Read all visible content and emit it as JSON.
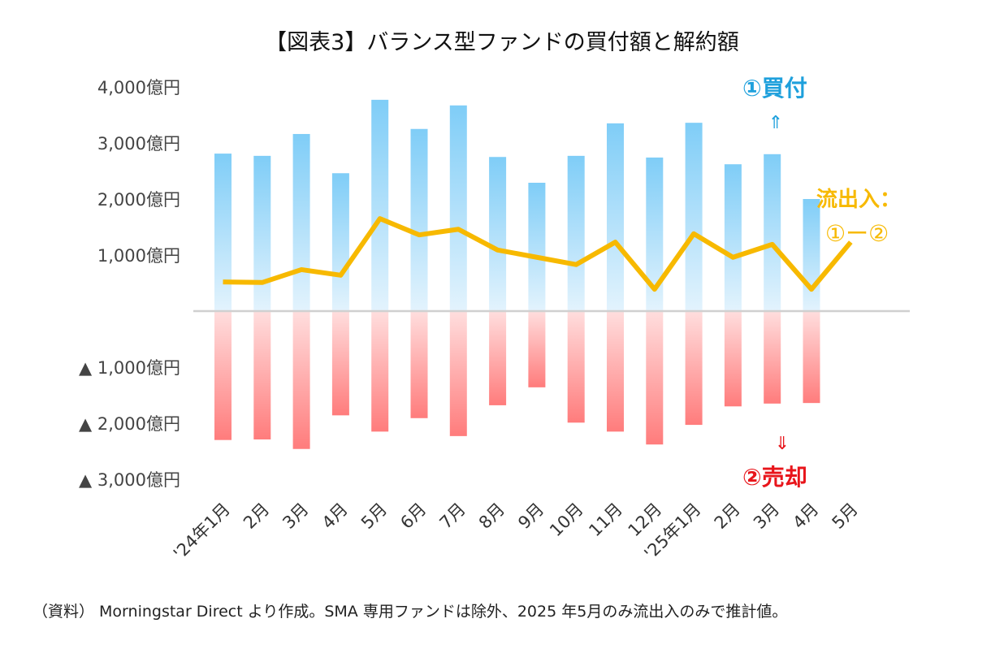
{
  "chart_data": {
    "type": "bar",
    "title": "【図表3】バランス型ファンドの買付額と解約額",
    "categories": [
      "'24年1月",
      "2月",
      "3月",
      "4月",
      "5月",
      "6月",
      "7月",
      "8月",
      "9月",
      "10月",
      "11月",
      "12月",
      "'25年1月",
      "2月",
      "3月",
      "4月",
      "5月"
    ],
    "series": [
      {
        "name": "①買付",
        "type": "bar",
        "color": "#7fcdf7",
        "values": [
          2810,
          2770,
          3160,
          2460,
          3770,
          3250,
          3670,
          2750,
          2290,
          2770,
          3350,
          2740,
          3360,
          2620,
          2800,
          2000,
          null
        ]
      },
      {
        "name": "②売却",
        "type": "bar",
        "color": "#ff7f7f",
        "values": [
          -2300,
          -2290,
          -2460,
          -1860,
          -2150,
          -1910,
          -2230,
          -1680,
          -1360,
          -1990,
          -2150,
          -2380,
          -2030,
          -1700,
          -1650,
          -1640,
          null
        ]
      },
      {
        "name": "流出入：①−②",
        "type": "line",
        "color": "#f7b900",
        "values": [
          520,
          510,
          740,
          640,
          1650,
          1360,
          1460,
          1090,
          960,
          830,
          1230,
          390,
          1380,
          960,
          1190,
          390,
          1230
        ]
      }
    ],
    "yticks": [
      {
        "value": 4000,
        "label": "4,000億円"
      },
      {
        "value": 3000,
        "label": "3,000億円"
      },
      {
        "value": 2000,
        "label": "2,000億円"
      },
      {
        "value": 1000,
        "label": "1,000億円"
      },
      {
        "value": -1000,
        "label": "▲ 1,000億円"
      },
      {
        "value": -2000,
        "label": "▲ 2,000億円"
      },
      {
        "value": -3000,
        "label": "▲ 3,000億円"
      }
    ],
    "ylim": [
      -3000,
      4000
    ],
    "grid": false,
    "annotations": {
      "buy_label": "①買付",
      "buy_arrow": "⇑",
      "sell_label": "②売却",
      "sell_arrow": "⇓",
      "flow_label_1": "流出入：",
      "flow_label_2": "①ー②"
    }
  },
  "note": "（資料） Morningstar Direct より作成。SMA 専用ファンドは除外、2025 年5月のみ流出入のみで推計値。"
}
